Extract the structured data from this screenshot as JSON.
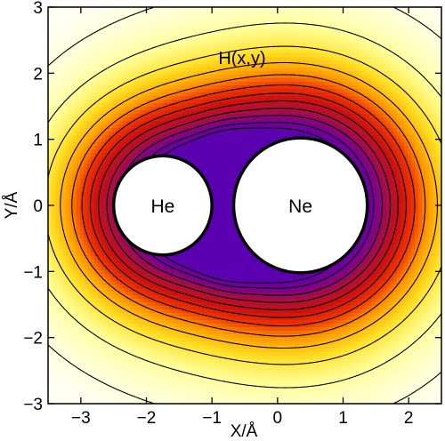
{
  "chart_data": {
    "type": "contour",
    "title": "H(x,y)",
    "xlabel": "X/Å",
    "ylabel": "Y/Å",
    "xlim": [
      -3.5,
      2.5
    ],
    "ylim": [
      -3,
      3
    ],
    "xticks": [
      -3,
      -2,
      -1,
      0,
      1,
      2
    ],
    "yticks": [
      -3,
      -2,
      -1,
      0,
      1,
      2,
      3
    ],
    "grid": false,
    "legend": "none",
    "atoms": [
      {
        "label": "He",
        "x": -1.75,
        "y": 0.0,
        "radius": 0.75
      },
      {
        "label": "Ne",
        "x": 0.35,
        "y": 0.0,
        "radius": 1.02
      }
    ],
    "colormap": [
      "#fffff2",
      "#ffff99",
      "#ffdd22",
      "#ff9900",
      "#ee3300",
      "#cc1010",
      "#aa0f40",
      "#7a0090",
      "#5a00b0"
    ],
    "contour_color": "#000000",
    "background_color": "#ffffff"
  }
}
